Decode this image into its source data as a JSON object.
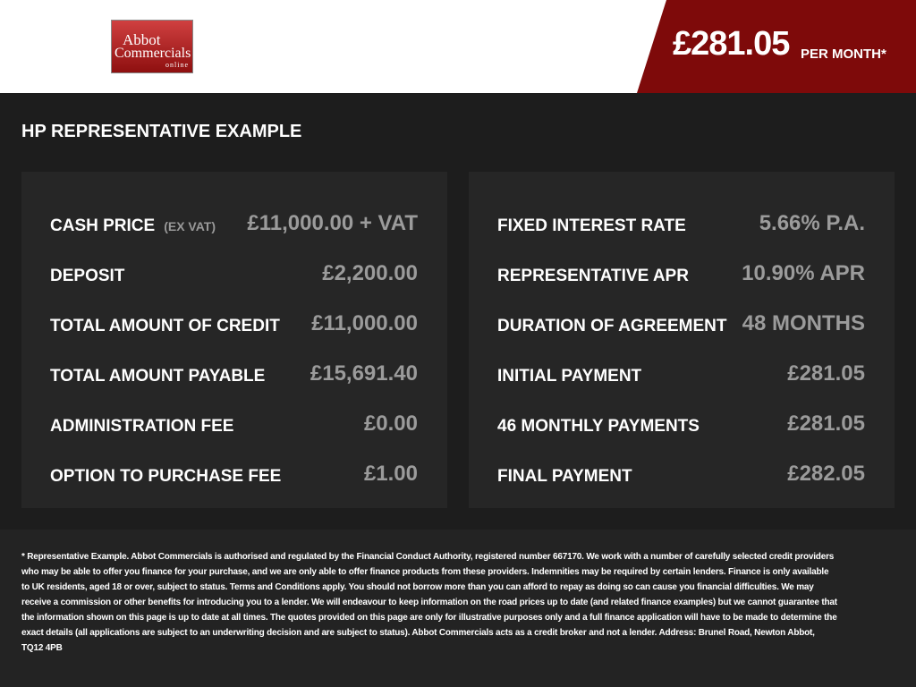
{
  "header": {
    "logo": {
      "line1": "Abbot",
      "line2": "Commercials",
      "line3": "online"
    },
    "price": "£281.05",
    "price_suffix": "PER MONTH*"
  },
  "section": {
    "title": "HP REPRESENTATIVE EXAMPLE"
  },
  "left": {
    "rows": [
      {
        "label": "CASH PRICE",
        "note": "(EX VAT)",
        "value": "£11,000.00 + VAT"
      },
      {
        "label": "DEPOSIT",
        "value": "£2,200.00"
      },
      {
        "label": "TOTAL AMOUNT OF CREDIT",
        "value": "£11,000.00"
      },
      {
        "label": "TOTAL AMOUNT PAYABLE",
        "value": "£15,691.40"
      },
      {
        "label": "ADMINISTRATION FEE",
        "value": "£0.00"
      },
      {
        "label": "OPTION TO PURCHASE FEE",
        "value": "£1.00"
      }
    ]
  },
  "right": {
    "rows": [
      {
        "label": "FIXED INTEREST RATE",
        "value": "5.66% P.A."
      },
      {
        "label": "REPRESENTATIVE APR",
        "value": "10.90% APR"
      },
      {
        "label": "DURATION OF AGREEMENT",
        "value": "48 MONTHS"
      },
      {
        "label": "INITIAL PAYMENT",
        "value": "£281.05"
      },
      {
        "label": "46 MONTHLY PAYMENTS",
        "value": "£281.05"
      },
      {
        "label": "FINAL PAYMENT",
        "value": "£282.05"
      }
    ]
  },
  "footer": {
    "disclaimer": "* Representative Example. Abbot Commercials is authorised and regulated by the Financial Conduct Authority, registered number 667170. We work with a number of carefully selected credit providers who may be able to offer you finance for your purchase, and we are only able to offer finance products from these providers. Indemnities may be required by certain lenders. Finance is only available to UK residents, aged 18 or over, subject to status. Terms and Conditions apply. You should not borrow more than you can afford to repay as doing so can cause you financial difficulties. We may receive a commission or other benefits for introducing you to a lender. We will endeavour to keep information on the road prices up to date (and related finance examples) but we cannot guarantee that the information shown on this page is up to date at all times. The quotes provided on this page are only for illustrative purposes only and a full finance application will have to be made to determine the exact details (all applications are subject to an underwriting decision and are subject to status). Abbot Commercials acts as a credit broker and not a lender. Address: Brunel Road, Newton Abbot, TQ12 4PB"
  }
}
